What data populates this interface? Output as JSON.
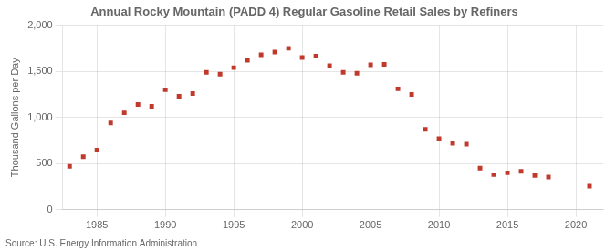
{
  "chart_data": {
    "type": "scatter",
    "title": "Annual Rocky Mountain (PADD 4) Regular Gasoline Retail Sales by Refiners",
    "y_label": "Thousand Gallons per Day",
    "source": "Source: U.S. Energy Information Administration",
    "x": [
      1983,
      1984,
      1985,
      1986,
      1987,
      1988,
      1989,
      1990,
      1991,
      1992,
      1993,
      1994,
      1995,
      1996,
      1997,
      1998,
      1999,
      2000,
      2001,
      2002,
      2003,
      2004,
      2005,
      2006,
      2007,
      2008,
      2009,
      2010,
      2011,
      2012,
      2013,
      2014,
      2015,
      2016,
      2017,
      2018,
      2021
    ],
    "values": [
      470,
      575,
      645,
      940,
      1050,
      1140,
      1120,
      1300,
      1230,
      1260,
      1490,
      1470,
      1540,
      1620,
      1680,
      1710,
      1750,
      1650,
      1665,
      1560,
      1490,
      1480,
      1570,
      1575,
      1310,
      1250,
      870,
      770,
      720,
      710,
      450,
      380,
      400,
      415,
      370,
      355,
      255
    ],
    "color": "#c0392b",
    "marker": "square",
    "xlim": [
      1982.5,
      2022
    ],
    "xticks": [
      1985,
      1990,
      1995,
      2000,
      2005,
      2010,
      2015,
      2020
    ],
    "ylim": [
      0,
      2000
    ],
    "yticks": [
      0,
      {
        "value": 500,
        "label": "500"
      },
      {
        "value": 1000,
        "label": "1,000"
      },
      {
        "value": 1500,
        "label": "1,500"
      },
      {
        "value": 2000,
        "label": "2,000"
      }
    ],
    "grid": true
  }
}
